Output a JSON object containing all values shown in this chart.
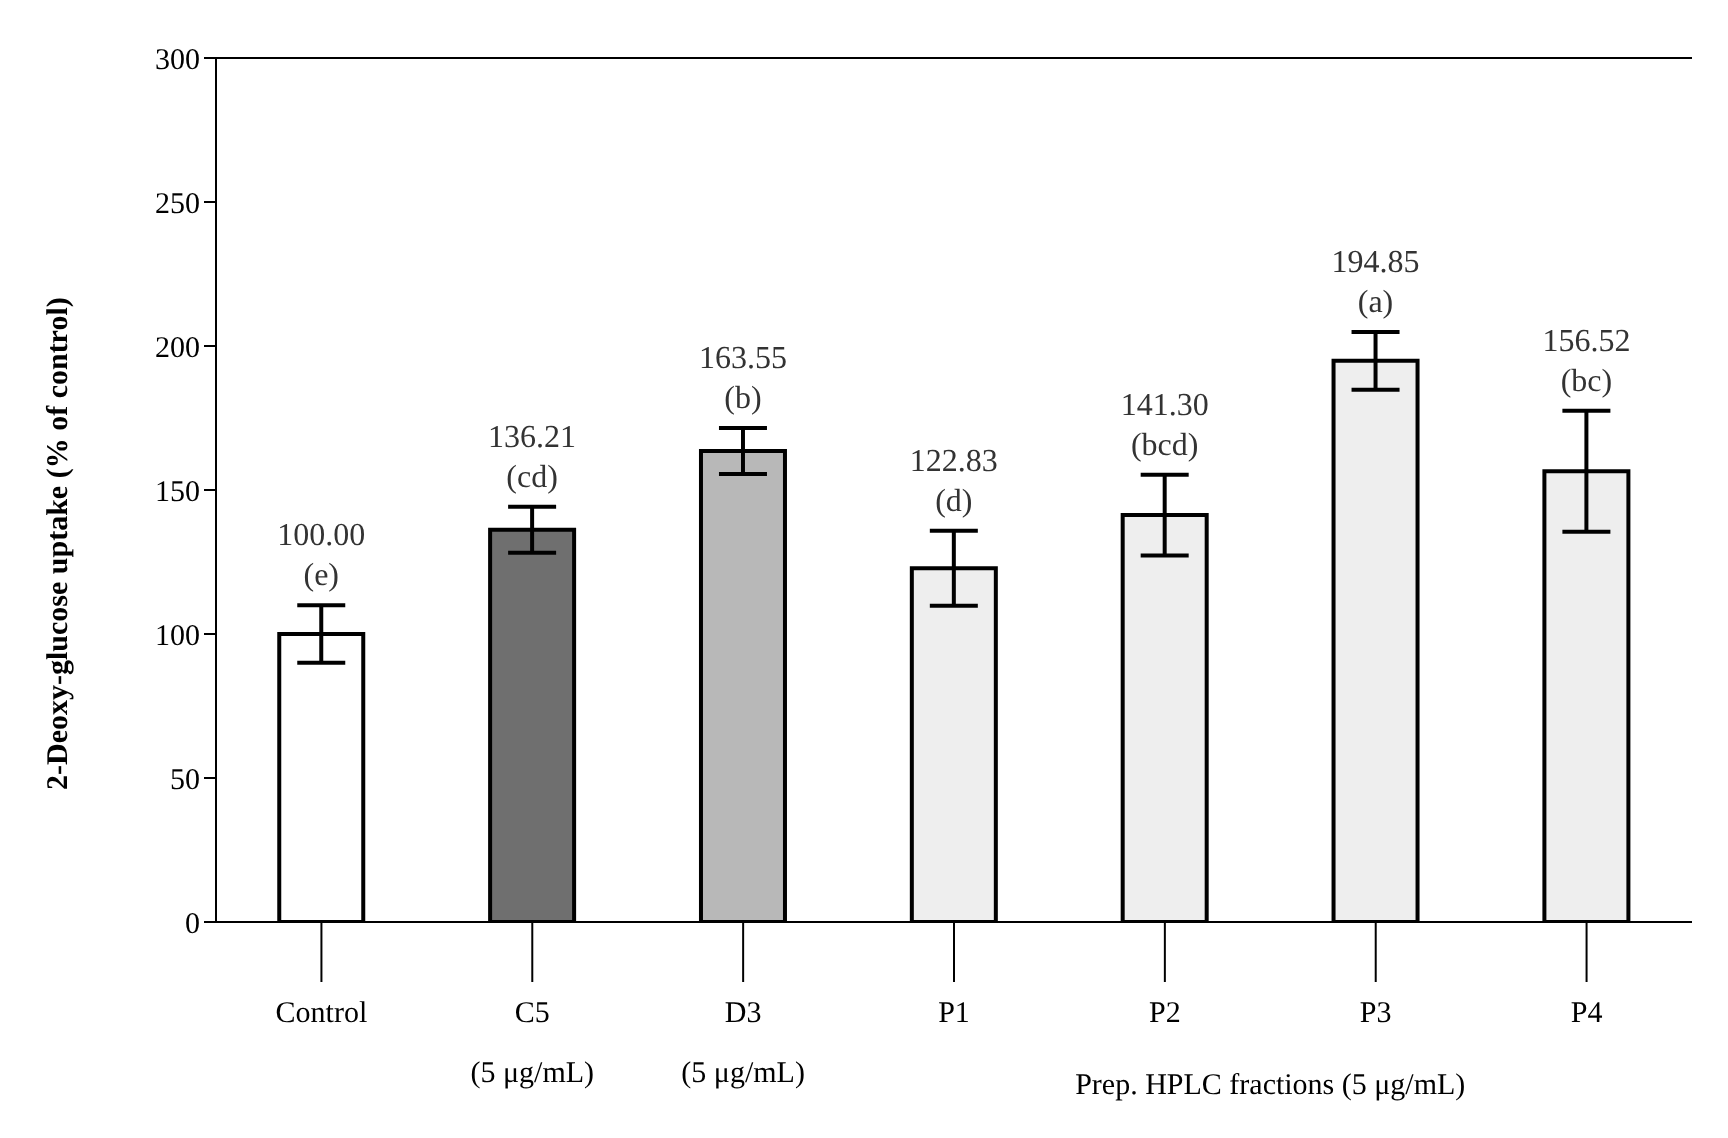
{
  "chart_data": {
    "type": "bar",
    "ylabel": "2-Deoxy-glucose uptake (% of control)",
    "categories": [
      "Control",
      "C5 (5 μg/mL)",
      "D3 (5 μg/mL)",
      "P1",
      "P2",
      "P3",
      "P4"
    ],
    "values": [
      100.0,
      136.21,
      163.55,
      122.83,
      141.3,
      194.85,
      156.52
    ],
    "colors": [
      "#ffffff",
      "#6f6f6f",
      "#b8b8b8",
      "#eeeeee",
      "#eeeeee",
      "#eeeeee",
      "#eeeeee"
    ],
    "errors": [
      10,
      8,
      8,
      13,
      14,
      10,
      21
    ],
    "value_labels": [
      "100.00 (e)",
      "136.21 (cd)",
      "163.55 (b)",
      "122.83 (d)",
      "141.30 (bcd)",
      "194.85 (a)",
      "156.52 (bc)"
    ],
    "annotations": [
      "Prep. HPLC fractions (5 μg/mL)"
    ],
    "ylim": [
      0,
      300
    ],
    "yticks": [
      0,
      50,
      100,
      150,
      200,
      250,
      300
    ],
    "grid": false,
    "legend": false
  }
}
